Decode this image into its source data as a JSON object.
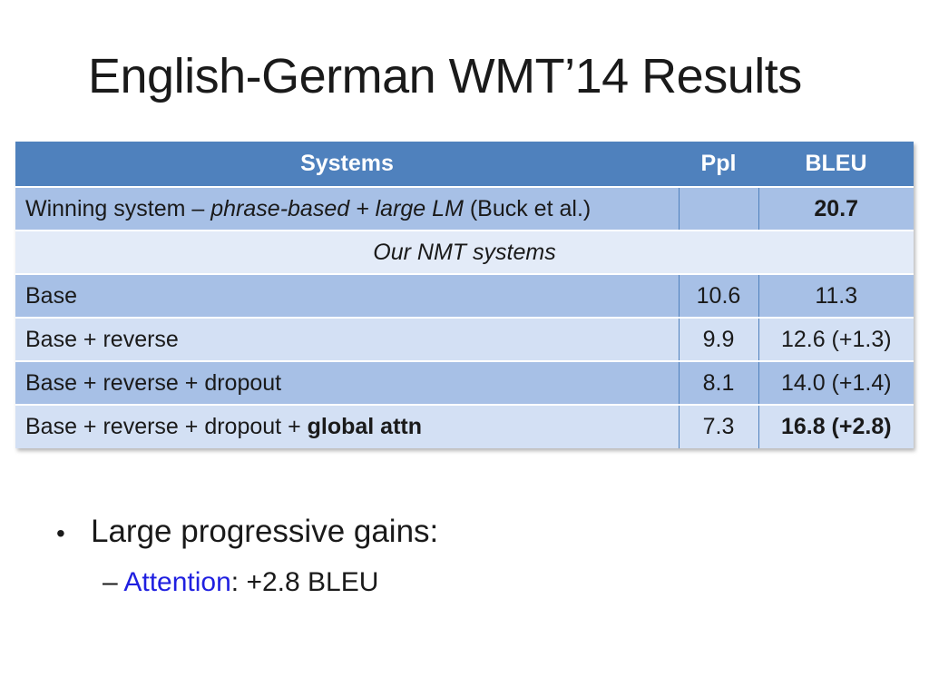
{
  "title": "English-German WMT’14 Results",
  "table": {
    "headers": {
      "systems": "Systems",
      "ppl": "Ppl",
      "bleu": "BLEU"
    },
    "winning": {
      "prefix": "Winning system – ",
      "emph": "phrase-based + large LM",
      "suffix": " (Buck et al.)",
      "ppl": "",
      "bleu": "20.7"
    },
    "group_label": "Our NMT systems",
    "rows": [
      {
        "system": "Base",
        "ppl": "10.6",
        "bleu": "11.3"
      },
      {
        "system": "Base + reverse",
        "ppl": "9.9",
        "bleu": "12.6 (+1.3)"
      },
      {
        "system": "Base + reverse + dropout",
        "ppl": "8.1",
        "bleu": "14.0 (+1.4)"
      }
    ],
    "last": {
      "prefix": "Base + reverse + dropout + ",
      "bold": "global attn",
      "ppl": "7.3",
      "bleu": "16.8 (+2.8)"
    }
  },
  "bullets": {
    "main": "Large progressive gains:",
    "sub_dash": "–",
    "sub_accent": "Attention",
    "sub_rest": ": +2.8 BLEU"
  }
}
